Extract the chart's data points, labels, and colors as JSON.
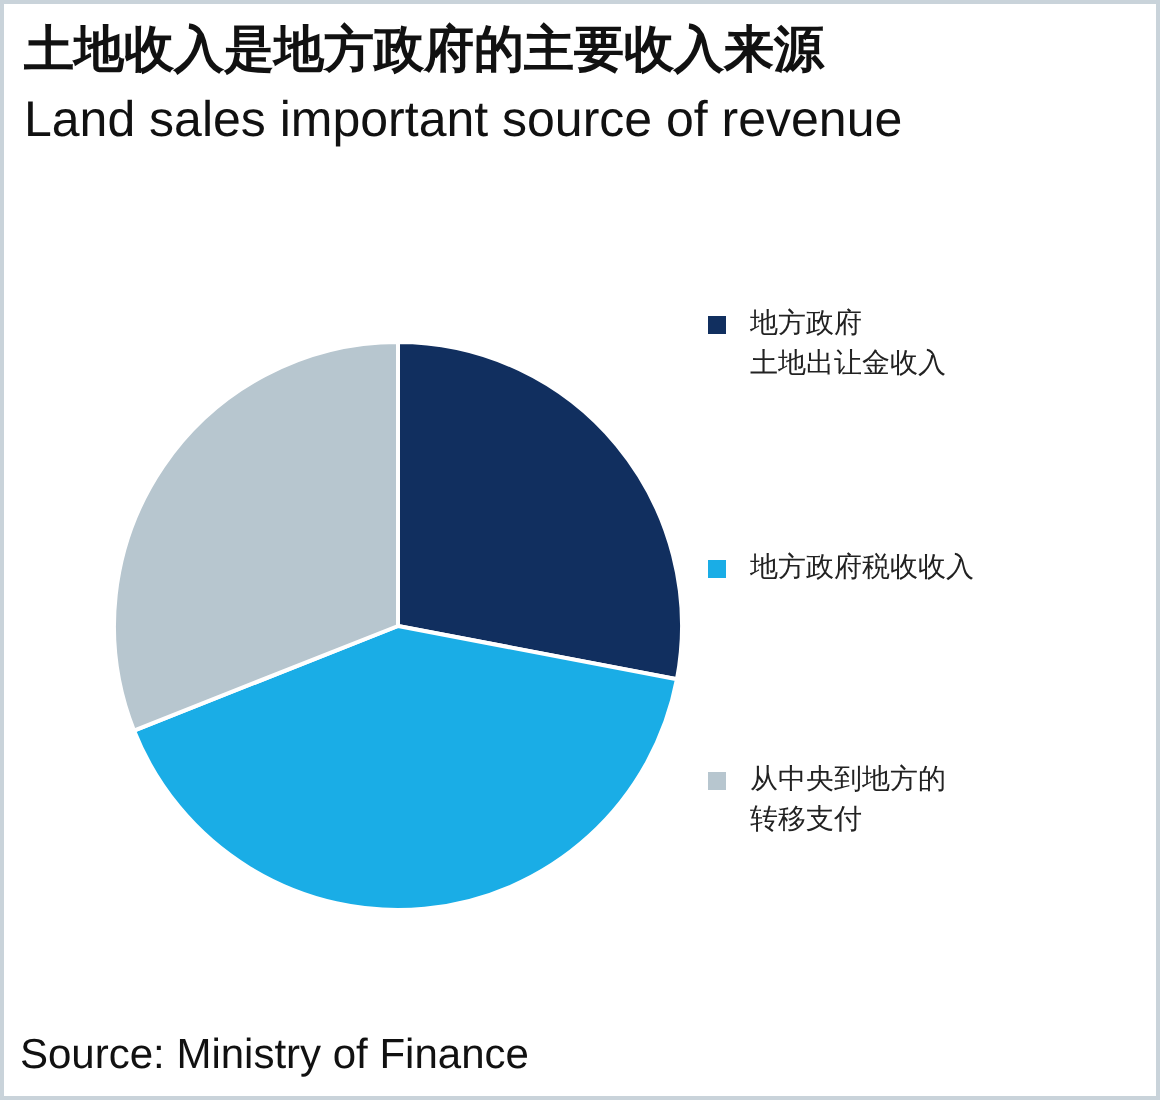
{
  "chart_data": {
    "type": "pie",
    "title": "土地收入是地方政府的主要收入来源",
    "subtitle": "Land sales important source of revenue",
    "categories": [
      "地方政府土地出让金收入",
      "地方政府税收收入",
      "从中央到地方的转移支付"
    ],
    "values": [
      28,
      41,
      31
    ],
    "colors": [
      "#112f5f",
      "#1aade6",
      "#b7c6cf"
    ],
    "legend": "right",
    "annotations": [
      "Source: Ministry of Finance"
    ]
  }
}
